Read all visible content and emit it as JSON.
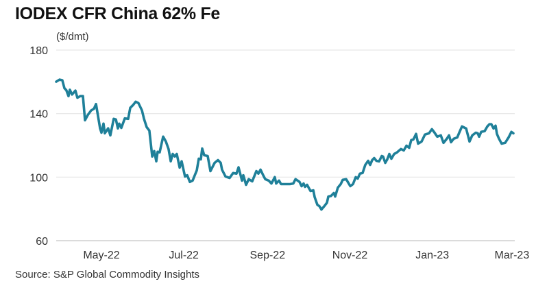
{
  "chart_data": {
    "type": "line",
    "title": "IODEX CFR China 62% Fe",
    "ylabel": "($/dmt)",
    "xlabel": "",
    "source": "Source: S&P Global Commodity Insights",
    "x_unit": "days since 2022-05-01",
    "ylim": [
      60,
      180
    ],
    "yticks": [
      60,
      100,
      140,
      180
    ],
    "xticks": [
      {
        "day": 0,
        "label": "May-22"
      },
      {
        "day": 61,
        "label": "Jul-22"
      },
      {
        "day": 123,
        "label": "Sep-22"
      },
      {
        "day": 184,
        "label": "Nov-22"
      },
      {
        "day": 245,
        "label": "Jan-23"
      },
      {
        "day": 304,
        "label": "Mar-23"
      }
    ],
    "grid": true,
    "line_color": "#1f8099",
    "series": [
      {
        "name": "IODEX CFR China 62% Fe",
        "points": [
          [
            -33.5,
            160.1
          ],
          [
            -31,
            161.4
          ],
          [
            -29,
            161
          ],
          [
            -27.4,
            156
          ],
          [
            -26,
            154.7
          ],
          [
            -24.4,
            151
          ],
          [
            -23.4,
            155
          ],
          [
            -21.8,
            152
          ],
          [
            -19.3,
            154.5
          ],
          [
            -17.8,
            150
          ],
          [
            -15.7,
            151
          ],
          [
            -13.7,
            151
          ],
          [
            -12.2,
            135.8
          ],
          [
            -10.2,
            139
          ],
          [
            -7.6,
            142
          ],
          [
            -5.6,
            143
          ],
          [
            -4,
            146
          ],
          [
            -1,
            130.7
          ],
          [
            0,
            128
          ],
          [
            1.5,
            133.7
          ],
          [
            2.5,
            127.6
          ],
          [
            5,
            130.7
          ],
          [
            6.6,
            126.3
          ],
          [
            9.1,
            136.7
          ],
          [
            10.7,
            136.3
          ],
          [
            12.2,
            130.7
          ],
          [
            13.2,
            133.7
          ],
          [
            14.7,
            131
          ],
          [
            17.3,
            137
          ],
          [
            19.8,
            136.7
          ],
          [
            21.3,
            143.6
          ],
          [
            23.4,
            145.4
          ],
          [
            25.4,
            147.5
          ],
          [
            27.4,
            146.6
          ],
          [
            30,
            142
          ],
          [
            31.5,
            136.7
          ],
          [
            33.5,
            131.5
          ],
          [
            35.5,
            129.3
          ],
          [
            37.6,
            113
          ],
          [
            39.1,
            116.4
          ],
          [
            40.6,
            110
          ],
          [
            41.6,
            116
          ],
          [
            43.1,
            115.6
          ],
          [
            45.7,
            125.5
          ],
          [
            47.7,
            122.4
          ],
          [
            49.7,
            117.7
          ],
          [
            51.3,
            110
          ],
          [
            52.8,
            114.6
          ],
          [
            54.3,
            113
          ],
          [
            55.8,
            114.6
          ],
          [
            57.9,
            106
          ],
          [
            59.4,
            110
          ],
          [
            61.9,
            100.4
          ],
          [
            63.5,
            101.2
          ],
          [
            65.5,
            97
          ],
          [
            67.5,
            97.8
          ],
          [
            70.6,
            104.3
          ],
          [
            72.1,
            111.6
          ],
          [
            73.6,
            111.2
          ],
          [
            74.6,
            118
          ],
          [
            76.1,
            113.8
          ],
          [
            78.7,
            113.3
          ],
          [
            80.7,
            103.8
          ],
          [
            83.8,
            109
          ],
          [
            86.3,
            110.7
          ],
          [
            88.3,
            109
          ],
          [
            89.3,
            104.7
          ],
          [
            91.9,
            100.4
          ],
          [
            94.9,
            99.5
          ],
          [
            97.5,
            102.6
          ],
          [
            100,
            102.2
          ],
          [
            101.5,
            106.2
          ],
          [
            104.1,
            97.8
          ],
          [
            105.1,
            101.2
          ],
          [
            107.1,
            95.2
          ],
          [
            109.1,
            98.7
          ],
          [
            111.7,
            97.4
          ],
          [
            114.7,
            103.8
          ],
          [
            116.2,
            102.2
          ],
          [
            117.8,
            104.7
          ],
          [
            119.8,
            101.2
          ],
          [
            121.3,
            98.7
          ],
          [
            123.9,
            97.8
          ],
          [
            125.9,
            96
          ],
          [
            128.4,
            100
          ],
          [
            129.4,
            96
          ],
          [
            131.5,
            97.8
          ],
          [
            133,
            95.6
          ],
          [
            136.5,
            95.6
          ],
          [
            139.6,
            95.6
          ],
          [
            142.1,
            96
          ],
          [
            143.7,
            98.7
          ],
          [
            146.7,
            97
          ],
          [
            148.2,
            94.3
          ],
          [
            149.7,
            96
          ],
          [
            150.8,
            93.9
          ],
          [
            152.3,
            95.2
          ],
          [
            154.8,
            91.3
          ],
          [
            156.9,
            91.7
          ],
          [
            157.9,
            87.4
          ],
          [
            159.9,
            82.6
          ],
          [
            161.4,
            81.7
          ],
          [
            162.9,
            79.6
          ],
          [
            165,
            81.7
          ],
          [
            167,
            83.9
          ],
          [
            168,
            87.8
          ],
          [
            170,
            88.2
          ],
          [
            172.1,
            90
          ],
          [
            173.1,
            87.8
          ],
          [
            175.1,
            93.4
          ],
          [
            177.2,
            95.6
          ],
          [
            178.7,
            98.3
          ],
          [
            181.2,
            98.7
          ],
          [
            184.3,
            94.3
          ],
          [
            186.3,
            95.6
          ],
          [
            188.3,
            100
          ],
          [
            189.8,
            99.1
          ],
          [
            191.4,
            102.2
          ],
          [
            193.4,
            102.6
          ],
          [
            195.4,
            107.7
          ],
          [
            197.5,
            110.3
          ],
          [
            199,
            107.7
          ],
          [
            200.5,
            110.7
          ],
          [
            202,
            112
          ],
          [
            203.6,
            110.3
          ],
          [
            205.6,
            109.9
          ],
          [
            207.6,
            113.3
          ],
          [
            208.6,
            112.9
          ],
          [
            210.2,
            109
          ],
          [
            211.7,
            111.2
          ],
          [
            213.2,
            114.6
          ],
          [
            214.7,
            111.6
          ],
          [
            216.8,
            114.6
          ],
          [
            218.8,
            115.5
          ],
          [
            221.8,
            117.7
          ],
          [
            223.9,
            116.8
          ],
          [
            225.9,
            119.8
          ],
          [
            227.9,
            118.5
          ],
          [
            229.4,
            123.3
          ],
          [
            231,
            123.7
          ],
          [
            233,
            127.2
          ],
          [
            234.5,
            121.1
          ],
          [
            237.1,
            122.4
          ],
          [
            239.6,
            126.8
          ],
          [
            242.6,
            127.6
          ],
          [
            244.7,
            130.2
          ],
          [
            246.7,
            128
          ],
          [
            248.7,
            125.5
          ],
          [
            251.3,
            126.3
          ],
          [
            253.3,
            121.6
          ],
          [
            255.8,
            124.2
          ],
          [
            257.4,
            126.3
          ],
          [
            258.9,
            122
          ],
          [
            260.9,
            124.2
          ],
          [
            263.5,
            125
          ],
          [
            265,
            128
          ],
          [
            267,
            131.9
          ],
          [
            270.1,
            130.6
          ],
          [
            272.6,
            122.4
          ],
          [
            274.6,
            126.3
          ],
          [
            277.2,
            128
          ],
          [
            278.7,
            127.6
          ],
          [
            279.7,
            125.5
          ],
          [
            281.2,
            128.5
          ],
          [
            283.8,
            129
          ],
          [
            285.8,
            131.9
          ],
          [
            287.3,
            133.3
          ],
          [
            288.8,
            133.3
          ],
          [
            290.4,
            130.6
          ],
          [
            291.9,
            132.4
          ],
          [
            292.9,
            127.2
          ],
          [
            294.4,
            124.2
          ],
          [
            296.4,
            121.1
          ],
          [
            299,
            121.6
          ],
          [
            301.5,
            125
          ],
          [
            303.6,
            128.5
          ],
          [
            305.1,
            127.6
          ]
        ]
      }
    ]
  }
}
